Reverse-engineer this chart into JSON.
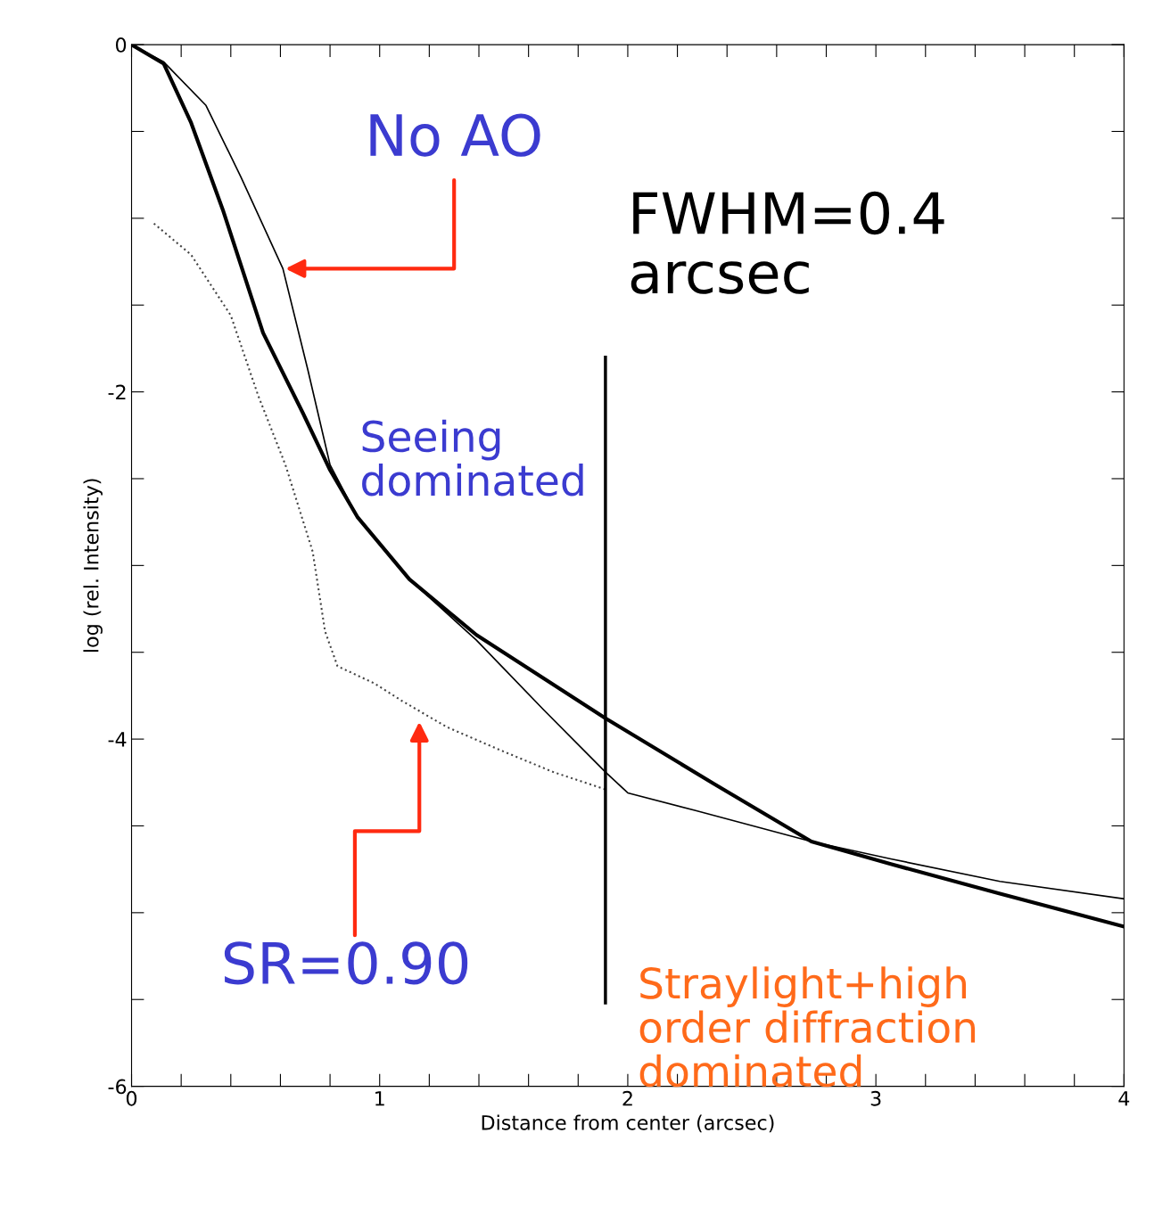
{
  "chart_data": {
    "type": "line",
    "xlabel": "Distance from center (arcsec)",
    "ylabel": "log (rel. Intensity)",
    "xlim": [
      0,
      4
    ],
    "ylim": [
      -6,
      0
    ],
    "xticks": [
      0,
      {
        "value": 0.2,
        "label": null
      },
      {
        "value": 0.4,
        "label": null
      },
      {
        "value": 0.6,
        "label": null
      },
      {
        "value": 0.8,
        "label": null
      },
      1,
      {
        "value": 1.2,
        "label": null
      },
      {
        "value": 1.4,
        "label": null
      },
      {
        "value": 1.6,
        "label": null
      },
      {
        "value": 1.8,
        "label": null
      },
      2,
      {
        "value": 2.2,
        "label": null
      },
      {
        "value": 2.4,
        "label": null
      },
      {
        "value": 2.6,
        "label": null
      },
      {
        "value": 2.8,
        "label": null
      },
      3,
      {
        "value": 3.2,
        "label": null
      },
      {
        "value": 3.4,
        "label": null
      },
      {
        "value": 3.6,
        "label": null
      },
      {
        "value": 3.8,
        "label": null
      },
      4
    ],
    "yticks": [
      -6,
      {
        "value": -5.5,
        "label": null
      },
      {
        "value": -5,
        "label": null
      },
      {
        "value": -4.5,
        "label": null
      },
      -4,
      {
        "value": -3.5,
        "label": null
      },
      {
        "value": -3,
        "label": null
      },
      {
        "value": -2.5,
        "label": null
      },
      -2,
      {
        "value": -1.5,
        "label": null
      },
      {
        "value": -1,
        "label": null
      },
      {
        "value": -0.5,
        "label": null
      },
      0
    ],
    "series": [
      {
        "color": "#000000",
        "line_style": "solid",
        "x": [
          0,
          0.13,
          0.3,
          0.44,
          0.61,
          0.71,
          0.8,
          0.91,
          1.12,
          1.39,
          1.66,
          1.91,
          2.0,
          2.27,
          2.74,
          3.06,
          3.5,
          4.0
        ],
        "values": [
          0,
          -0.1,
          -0.35,
          -0.76,
          -1.29,
          -1.87,
          -2.42,
          -2.72,
          -3.08,
          -3.43,
          -3.83,
          -4.19,
          -4.31,
          -4.41,
          -4.59,
          -4.69,
          -4.82,
          -4.92
        ]
      },
      {
        "color": "#000000",
        "line_style": "solid",
        "x": [
          0,
          0.13,
          0.24,
          0.37,
          0.53,
          0.69,
          0.8,
          0.91,
          1.12,
          1.39,
          1.91,
          2.35,
          2.74,
          3.06,
          3.5,
          4.0
        ],
        "values": [
          0,
          -0.11,
          -0.45,
          -0.96,
          -1.66,
          -2.12,
          -2.45,
          -2.72,
          -3.08,
          -3.4,
          -3.88,
          -4.26,
          -4.59,
          -4.72,
          -4.89,
          -5.08
        ]
      },
      {
        "color": "#444444",
        "line_style": "dotted",
        "x": [
          0.09,
          0.24,
          0.4,
          0.51,
          0.62,
          0.73,
          0.78,
          0.83,
          0.98,
          1.09,
          1.27,
          1.48,
          1.7,
          1.91
        ],
        "values": [
          -1.03,
          -1.21,
          -1.56,
          -2.02,
          -2.42,
          -2.92,
          -3.38,
          -3.58,
          -3.68,
          -3.78,
          -3.93,
          -4.06,
          -4.19,
          -4.29
        ]
      }
    ],
    "ref_lines": [
      {
        "axis": "x",
        "value": 1.91,
        "color": "#000000"
      }
    ],
    "annotations": [
      {
        "text": "No AO",
        "x": 0.61,
        "y": -1.29
      },
      "SR=0.90",
      "FWHM=0.4\narcsec",
      "Seeing\ndominated",
      "Straylight+high\norder diffraction\ndominated"
    ],
    "grid": false
  }
}
